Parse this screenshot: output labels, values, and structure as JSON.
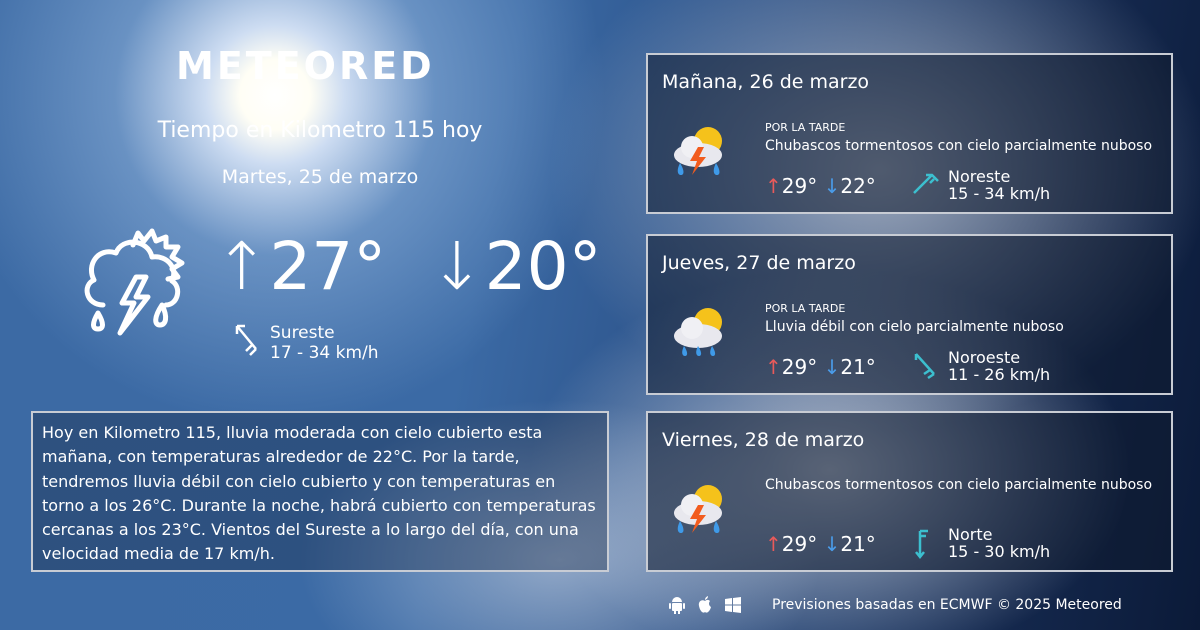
{
  "brand": "METEORED",
  "header": {
    "title": "Tiempo en Kilometro 115 hoy",
    "date": "Martes, 25 de marzo"
  },
  "today": {
    "icon": "thunderstorm-sun-rain-icon",
    "max": "27°",
    "min": "20°",
    "wind_dir": "Sureste",
    "wind_speed": "17 - 34 km/h"
  },
  "description": "Hoy en Kilometro 115, lluvia moderada con cielo cubierto esta mañana, con temperaturas alrededor de 22°C. Por la tarde, tendremos lluvia débil con cielo cubierto y con temperaturas en torno a los 26°C. Durante la noche, habrá cubierto  con temperaturas cercanas a los 23°C. Vientos del Sureste a lo largo del día, con una velocidad media de 17 km/h.",
  "forecast": [
    {
      "day": "Mañana, 26 de marzo",
      "period": "POR LA TARDE",
      "condition": "Chubascos tormentosos con cielo parcialmente nuboso",
      "max": "29°",
      "min": "22°",
      "wind_dir": "Noreste",
      "wind_speed": "15 - 34 km/h",
      "icon": "thunderstorm-icon"
    },
    {
      "day": "Jueves, 27 de marzo",
      "period": "POR LA TARDE",
      "condition": "Lluvia débil con cielo parcialmente nuboso",
      "max": "29°",
      "min": "21°",
      "wind_dir": "Noroeste",
      "wind_speed": "11 - 26 km/h",
      "icon": "light-rain-icon"
    },
    {
      "day": "Viernes, 28 de marzo",
      "condition": "Chubascos tormentosos con cielo parcialmente nuboso",
      "max": "29°",
      "min": "21°",
      "wind_dir": "Norte",
      "wind_speed": "15 - 30 km/h",
      "icon": "thunderstorm-icon"
    }
  ],
  "footer": {
    "text": "Previsiones basadas en ECMWF © 2025 Meteored",
    "icons": [
      "android-icon",
      "apple-icon",
      "windows-icon"
    ]
  },
  "colors": {
    "max": "#e85a5a",
    "min": "#4a9be8",
    "wind": "#3cbfcf"
  }
}
